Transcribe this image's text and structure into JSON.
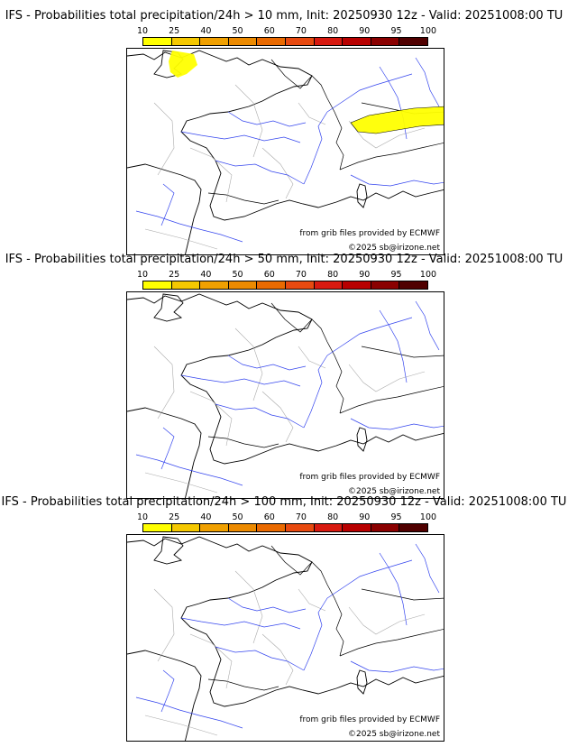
{
  "colorbar": {
    "ticks": [
      "10",
      "25",
      "40",
      "50",
      "60",
      "70",
      "80",
      "90",
      "95",
      "100"
    ],
    "colors": [
      "#ffff00",
      "#f5c800",
      "#f0a000",
      "#ec8a00",
      "#ea6a00",
      "#e84a10",
      "#d81a10",
      "#b80000",
      "#8a0000",
      "#500000"
    ]
  },
  "panels": [
    {
      "title": "IFS - Probabilities total precipitation/24h > 10 mm, Init: 20250930 12z - Valid: 20251008:00 TU",
      "source_credit": "from grib files provided by ECMWF",
      "copyright": "©2025 sb@irizone.net",
      "has_precip_areas": true
    },
    {
      "title": "IFS - Probabilities total precipitation/24h > 50 mm, Init: 20250930 12z - Valid: 20251008:00 TU",
      "source_credit": "from grib files provided by ECMWF",
      "copyright": "©2025 sb@irizone.net",
      "has_precip_areas": false
    },
    {
      "title": "IFS - Probabilities total precipitation/24h > 100 mm, Init: 20250930 12z - Valid: 20251008:00 TU",
      "source_credit": "from grib files provided by ECMWF",
      "copyright": "©2025 sb@irizone.net",
      "has_precip_areas": false
    }
  ]
}
